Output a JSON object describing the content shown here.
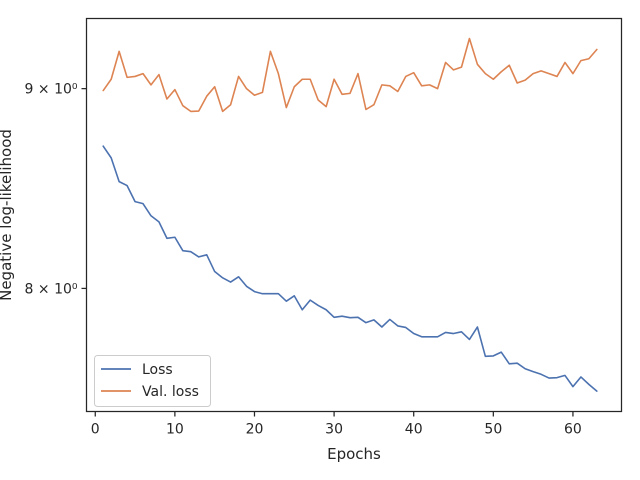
{
  "chart_data": {
    "type": "line",
    "xlabel": "Epochs",
    "ylabel": "Negative log-likelihood",
    "yscale": "log",
    "xlim": [
      -1.1,
      66.1
    ],
    "ylim": [
      7.44,
      9.38
    ],
    "x_ticks": [
      0,
      10,
      20,
      30,
      40,
      50,
      60
    ],
    "y_ticks": [
      {
        "value": 8,
        "label": "8 × 10⁰"
      },
      {
        "value": 9,
        "label": "9 × 10⁰"
      }
    ],
    "grid": false,
    "legend": {
      "position": "lower-left"
    },
    "x": [
      1,
      2,
      3,
      4,
      5,
      6,
      7,
      8,
      9,
      10,
      11,
      12,
      13,
      14,
      15,
      16,
      17,
      18,
      19,
      20,
      21,
      22,
      23,
      24,
      25,
      26,
      27,
      28,
      29,
      30,
      31,
      32,
      33,
      34,
      35,
      36,
      37,
      38,
      39,
      40,
      41,
      42,
      43,
      44,
      45,
      46,
      47,
      48,
      49,
      50,
      51,
      52,
      53,
      54,
      55,
      56,
      57,
      58,
      59,
      60,
      61,
      62,
      63
    ],
    "series": [
      {
        "name": "Loss",
        "color": "#4c72b0",
        "values": [
          8.7,
          8.64,
          8.52,
          8.5,
          8.42,
          8.41,
          8.35,
          8.32,
          8.24,
          8.245,
          8.18,
          8.175,
          8.15,
          8.16,
          8.08,
          8.05,
          8.03,
          8.055,
          8.01,
          7.985,
          7.975,
          7.975,
          7.975,
          7.94,
          7.965,
          7.9,
          7.945,
          7.92,
          7.9,
          7.865,
          7.87,
          7.863,
          7.865,
          7.84,
          7.853,
          7.82,
          7.855,
          7.825,
          7.818,
          7.79,
          7.775,
          7.775,
          7.775,
          7.795,
          7.79,
          7.798,
          7.763,
          7.82,
          7.686,
          7.688,
          7.705,
          7.652,
          7.655,
          7.63,
          7.617,
          7.605,
          7.588,
          7.59,
          7.6,
          7.55,
          7.593,
          7.56,
          7.53
        ]
      },
      {
        "name": "Val. loss",
        "color": "#dd8452",
        "values": [
          8.99,
          9.05,
          9.2,
          9.06,
          9.065,
          9.08,
          9.02,
          9.075,
          8.945,
          8.995,
          8.91,
          8.88,
          8.882,
          8.96,
          9.01,
          8.88,
          8.915,
          9.065,
          9.0,
          8.965,
          8.98,
          9.2,
          9.08,
          8.9,
          9.01,
          9.05,
          9.05,
          8.94,
          8.905,
          9.05,
          8.97,
          8.975,
          9.08,
          8.89,
          8.915,
          9.02,
          9.015,
          8.985,
          9.065,
          9.085,
          9.015,
          9.02,
          9.0,
          9.14,
          9.1,
          9.115,
          9.27,
          9.13,
          9.08,
          9.05,
          9.09,
          9.125,
          9.03,
          9.045,
          9.08,
          9.095,
          9.08,
          9.065,
          9.14,
          9.08,
          9.15,
          9.16,
          9.21
        ]
      }
    ]
  }
}
